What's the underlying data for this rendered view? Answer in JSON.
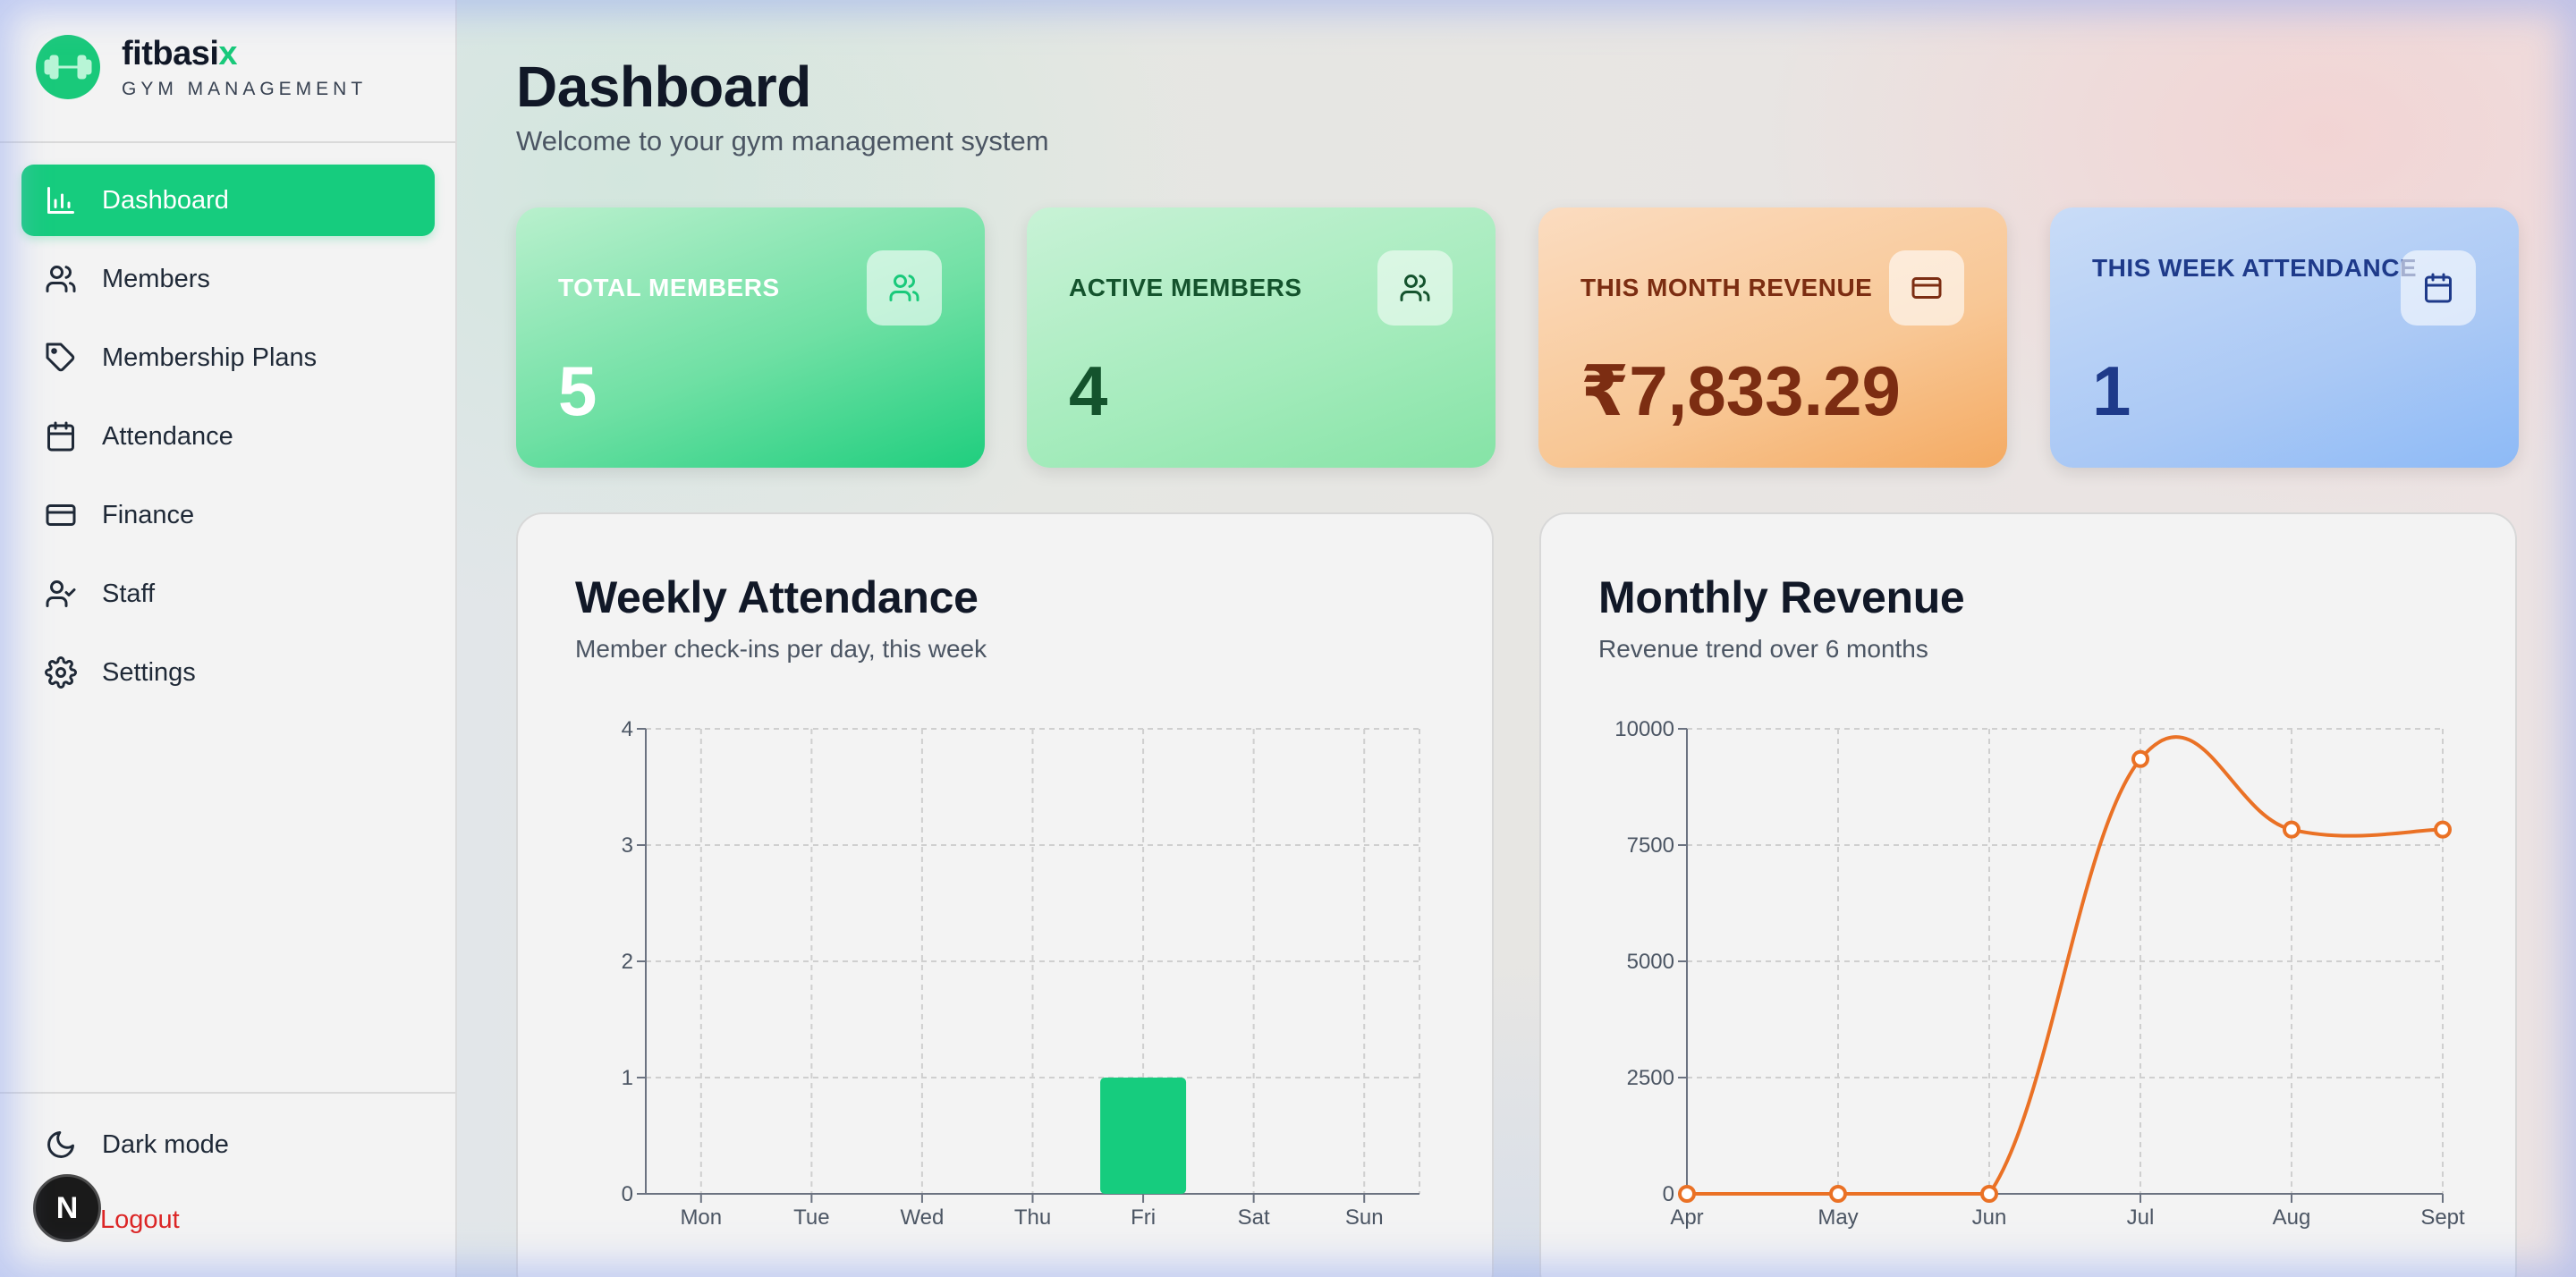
{
  "brand": {
    "name_main": "fitbasi",
    "name_accent": "x",
    "subtitle": "GYM MANAGEMENT"
  },
  "sidebar": {
    "items": [
      {
        "label": "Dashboard",
        "icon": "bar-chart-icon",
        "active": true
      },
      {
        "label": "Members",
        "icon": "users-icon"
      },
      {
        "label": "Membership Plans",
        "icon": "tag-icon"
      },
      {
        "label": "Attendance",
        "icon": "calendar-icon"
      },
      {
        "label": "Finance",
        "icon": "credit-card-icon"
      },
      {
        "label": "Staff",
        "icon": "user-check-icon"
      },
      {
        "label": "Settings",
        "icon": "gear-icon"
      }
    ],
    "dark_mode_label": "Dark mode",
    "logout_label": "Logout",
    "avatar_letter": "N"
  },
  "header": {
    "title": "Dashboard",
    "subtitle": "Welcome to your gym management system"
  },
  "stats": [
    {
      "label": "TOTAL MEMBERS",
      "value": "5",
      "icon": "users-icon"
    },
    {
      "label": "ACTIVE MEMBERS",
      "value": "4",
      "icon": "users-icon"
    },
    {
      "label": "THIS MONTH REVENUE",
      "value": "₹7,833.29",
      "icon": "credit-card-icon"
    },
    {
      "label": "THIS WEEK ATTENDANCE",
      "value": "1",
      "icon": "calendar-icon"
    }
  ],
  "colors": {
    "accent": "#16cc7e",
    "revenue_line": "#ea7125",
    "logout": "#dc2626"
  },
  "chart_data": [
    {
      "type": "bar",
      "title": "Weekly Attendance",
      "subtitle": "Member check-ins per day, this week",
      "categories": [
        "Mon",
        "Tue",
        "Wed",
        "Thu",
        "Fri",
        "Sat",
        "Sun"
      ],
      "values": [
        0,
        0,
        0,
        0,
        1,
        0,
        0
      ],
      "ylim": [
        0,
        4
      ],
      "yticks": [
        0,
        1,
        2,
        3,
        4
      ],
      "grid": true,
      "color": "#16cc7e"
    },
    {
      "type": "line",
      "title": "Monthly Revenue",
      "subtitle": "Revenue trend over 6 months",
      "categories": [
        "Apr",
        "May",
        "Jun",
        "Jul",
        "Aug",
        "Sept"
      ],
      "values": [
        0,
        0,
        0,
        9350,
        7833.29,
        7833.29
      ],
      "ylim": [
        0,
        10000
      ],
      "yticks": [
        0,
        2500,
        5000,
        7500,
        10000
      ],
      "grid": true,
      "color": "#ea7125"
    }
  ]
}
